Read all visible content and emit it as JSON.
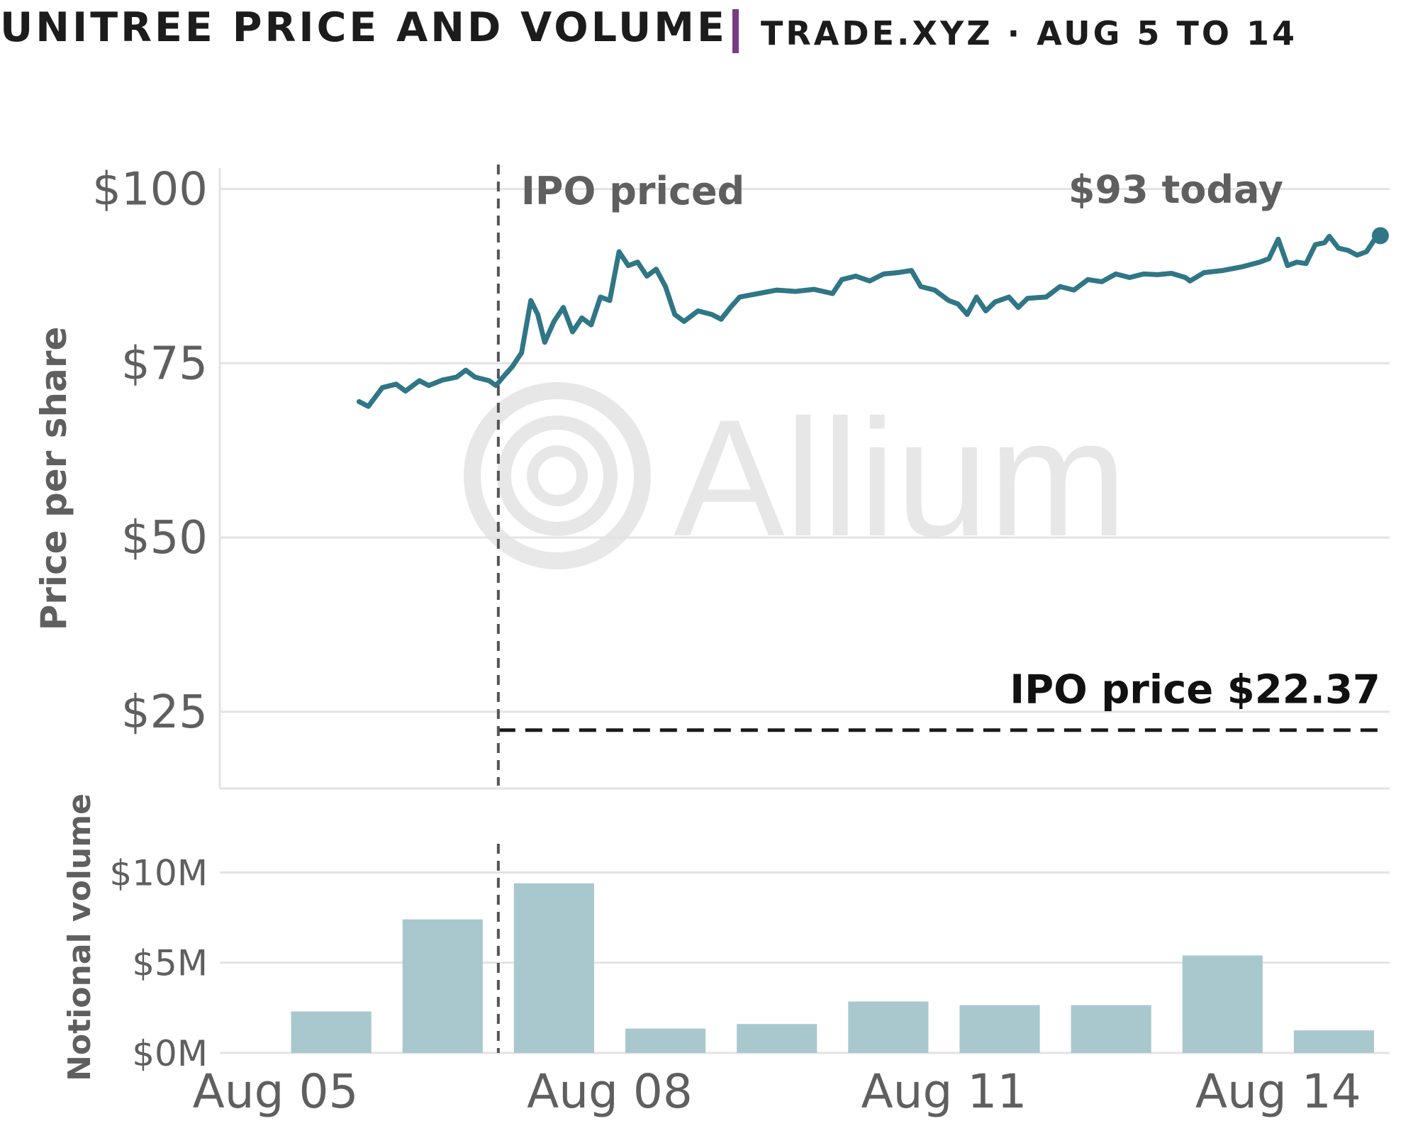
{
  "header": {
    "title": "UNITREE PRICE AND VOLUME",
    "source": "TRADE.XYZ · AUG 5 TO 14"
  },
  "watermark": {
    "text": "Allium",
    "icon": "allium-concentric-circles-logo"
  },
  "colors": {
    "line": "#2f7686",
    "bar": "#a8c8ce",
    "grid": "#e3e3e3",
    "accent": "#7b3a84",
    "text": "#5f5f5f"
  },
  "chart_data": [
    {
      "type": "line",
      "ylabel": "Price per share",
      "ylim": [
        14,
        103
      ],
      "yticks": [
        {
          "value": 25,
          "label": "$25"
        },
        {
          "value": 50,
          "label": "$50"
        },
        {
          "value": 75,
          "label": "$75"
        },
        {
          "value": 100,
          "label": "$100"
        }
      ],
      "xlim": [
        "2025-08-04 12:00",
        "2025-08-15 00:00"
      ],
      "grid": true,
      "series": [
        {
          "points": [
            [
              "2025-08-05 18:00",
              69.5
            ],
            [
              "2025-08-05 20:00",
              68.8
            ],
            [
              "2025-08-05 23:00",
              71.5
            ],
            [
              "2025-08-06 02:00",
              72.0
            ],
            [
              "2025-08-06 04:00",
              71.0
            ],
            [
              "2025-08-06 07:00",
              72.5
            ],
            [
              "2025-08-06 09:00",
              71.8
            ],
            [
              "2025-08-06 12:00",
              72.6
            ],
            [
              "2025-08-06 15:00",
              73.0
            ],
            [
              "2025-08-06 17:00",
              74.0
            ],
            [
              "2025-08-06 19:00",
              73.0
            ],
            [
              "2025-08-06 22:00",
              72.5
            ],
            [
              "2025-08-06 23:30",
              71.8
            ],
            [
              "2025-08-07 01:00",
              73.0
            ],
            [
              "2025-08-07 03:00",
              74.5
            ],
            [
              "2025-08-07 05:00",
              76.5
            ],
            [
              "2025-08-07 07:00",
              84.0
            ],
            [
              "2025-08-07 08:30",
              82.0
            ],
            [
              "2025-08-07 10:00",
              78.0
            ],
            [
              "2025-08-07 12:00",
              81.0
            ],
            [
              "2025-08-07 14:00",
              83.0
            ],
            [
              "2025-08-07 16:00",
              79.5
            ],
            [
              "2025-08-07 18:00",
              81.5
            ],
            [
              "2025-08-07 20:00",
              80.5
            ],
            [
              "2025-08-07 22:00",
              84.5
            ],
            [
              "2025-08-08 00:00",
              84.0
            ],
            [
              "2025-08-08 02:00",
              91.0
            ],
            [
              "2025-08-08 04:00",
              89.0
            ],
            [
              "2025-08-08 06:00",
              89.5
            ],
            [
              "2025-08-08 08:00",
              87.5
            ],
            [
              "2025-08-08 10:00",
              88.5
            ],
            [
              "2025-08-08 12:00",
              86.0
            ],
            [
              "2025-08-08 14:00",
              82.0
            ],
            [
              "2025-08-08 16:00",
              81.0
            ],
            [
              "2025-08-08 19:00",
              82.5
            ],
            [
              "2025-08-08 22:00",
              82.0
            ],
            [
              "2025-08-09 00:00",
              81.3
            ],
            [
              "2025-08-09 02:00",
              83.0
            ],
            [
              "2025-08-09 04:00",
              84.5
            ],
            [
              "2025-08-09 08:00",
              85.0
            ],
            [
              "2025-08-09 12:00",
              85.5
            ],
            [
              "2025-08-09 16:00",
              85.3
            ],
            [
              "2025-08-09 20:00",
              85.6
            ],
            [
              "2025-08-10 00:00",
              85.0
            ],
            [
              "2025-08-10 02:00",
              87.0
            ],
            [
              "2025-08-10 05:00",
              87.5
            ],
            [
              "2025-08-10 08:00",
              86.8
            ],
            [
              "2025-08-10 11:00",
              87.8
            ],
            [
              "2025-08-10 14:00",
              88.0
            ],
            [
              "2025-08-10 17:00",
              88.3
            ],
            [
              "2025-08-10 19:00",
              86.0
            ],
            [
              "2025-08-10 22:00",
              85.5
            ],
            [
              "2025-08-11 01:00",
              84.0
            ],
            [
              "2025-08-11 03:00",
              83.5
            ],
            [
              "2025-08-11 05:00",
              82.0
            ],
            [
              "2025-08-11 07:00",
              84.5
            ],
            [
              "2025-08-11 09:00",
              82.5
            ],
            [
              "2025-08-11 11:00",
              83.8
            ],
            [
              "2025-08-11 14:00",
              84.5
            ],
            [
              "2025-08-11 16:00",
              83.0
            ],
            [
              "2025-08-11 18:00",
              84.3
            ],
            [
              "2025-08-11 22:00",
              84.5
            ],
            [
              "2025-08-12 01:00",
              86.0
            ],
            [
              "2025-08-12 04:00",
              85.5
            ],
            [
              "2025-08-12 07:00",
              87.0
            ],
            [
              "2025-08-12 10:00",
              86.7
            ],
            [
              "2025-08-12 13:00",
              87.8
            ],
            [
              "2025-08-12 16:00",
              87.3
            ],
            [
              "2025-08-12 19:00",
              87.8
            ],
            [
              "2025-08-12 22:00",
              87.7
            ],
            [
              "2025-08-13 01:00",
              87.9
            ],
            [
              "2025-08-13 04:00",
              87.3
            ],
            [
              "2025-08-13 05:00",
              86.8
            ],
            [
              "2025-08-13 08:00",
              88.0
            ],
            [
              "2025-08-13 12:00",
              88.3
            ],
            [
              "2025-08-13 16:00",
              88.8
            ],
            [
              "2025-08-13 20:00",
              89.5
            ],
            [
              "2025-08-13 22:00",
              90.0
            ],
            [
              "2025-08-14 00:00",
              92.8
            ],
            [
              "2025-08-14 02:00",
              89.0
            ],
            [
              "2025-08-14 04:00",
              89.5
            ],
            [
              "2025-08-14 06:00",
              89.3
            ],
            [
              "2025-08-14 08:00",
              92.0
            ],
            [
              "2025-08-14 10:00",
              92.3
            ],
            [
              "2025-08-14 11:00",
              93.2
            ],
            [
              "2025-08-14 13:00",
              91.5
            ],
            [
              "2025-08-14 15:00",
              91.2
            ],
            [
              "2025-08-14 17:00",
              90.5
            ],
            [
              "2025-08-14 19:00",
              91.0
            ],
            [
              "2025-08-14 21:00",
              93.0
            ]
          ],
          "last_point": [
            "2025-08-14 22:00",
            93.3
          ]
        }
      ],
      "annotations": [
        {
          "kind": "vline",
          "x": "2025-08-07 00:00",
          "label": "IPO priced"
        },
        {
          "kind": "hline",
          "y": 22.37,
          "from": "2025-08-07 00:00",
          "to": "2025-08-14 22:00",
          "label": "IPO price $22.37"
        },
        {
          "kind": "point-label",
          "text": "$93 today"
        }
      ]
    },
    {
      "type": "bar",
      "ylabel": "Notional volume",
      "ylim": [
        0,
        11
      ],
      "yticks": [
        {
          "value": 0,
          "label": "$0M"
        },
        {
          "value": 5,
          "label": "$5M"
        },
        {
          "value": 10,
          "label": "$10M"
        }
      ],
      "categories": [
        "2025-08-05",
        "2025-08-06",
        "2025-08-07",
        "2025-08-08",
        "2025-08-09",
        "2025-08-10",
        "2025-08-11",
        "2025-08-12",
        "2025-08-13",
        "2025-08-14"
      ],
      "values": [
        2.3,
        7.4,
        9.4,
        1.35,
        1.6,
        2.85,
        2.65,
        2.65,
        5.4,
        1.25
      ],
      "xticks": [
        {
          "value": "2025-08-05",
          "label": "Aug 05"
        },
        {
          "value": "2025-08-08",
          "label": "Aug 08"
        },
        {
          "value": "2025-08-11",
          "label": "Aug 11"
        },
        {
          "value": "2025-08-14",
          "label": "Aug 14"
        }
      ],
      "grid": true
    }
  ]
}
